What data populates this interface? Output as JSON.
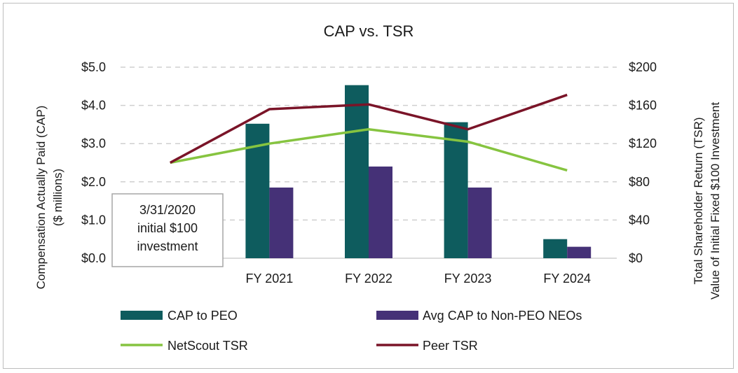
{
  "chart_data": {
    "type": "bar+line",
    "title": "CAP vs. TSR",
    "categories": [
      "",
      "FY 2021",
      "FY 2022",
      "FY 2023",
      "FY 2024"
    ],
    "y_left": {
      "label_line1": "Compensation Actually Paid (CAP)",
      "label_line2": "($ millions)",
      "ylim": [
        0,
        5
      ],
      "ticks": [
        0,
        1,
        2,
        3,
        4,
        5
      ],
      "tick_labels": [
        "$0.0",
        "$1.0",
        "$2.0",
        "$3.0",
        "$4.0",
        "$5.0"
      ]
    },
    "y_right": {
      "label_line1": "Total Shareholder Return (TSR)",
      "label_line2": "Value of Initial Fixed $100 Investment",
      "ylim": [
        0,
        200
      ],
      "ticks": [
        0,
        40,
        80,
        120,
        160,
        200
      ],
      "tick_labels": [
        "$0",
        "$40",
        "$80",
        "$120",
        "$160",
        "$200"
      ]
    },
    "bar_series": [
      {
        "name": "CAP to PEO",
        "color": "#0e5c5e",
        "values": [
          null,
          3.52,
          4.53,
          3.56,
          0.5
        ]
      },
      {
        "name": "Avg CAP to Non-PEO NEOs",
        "color": "#453177",
        "values": [
          null,
          1.85,
          2.4,
          1.85,
          0.3
        ]
      }
    ],
    "line_series": [
      {
        "name": "NetScout TSR",
        "color": "#86c440",
        "values": [
          100,
          120,
          135,
          122,
          92
        ]
      },
      {
        "name": "Peer TSR",
        "color": "#7a1428",
        "values": [
          100,
          156,
          161,
          135,
          171
        ]
      }
    ],
    "annotation": {
      "lines": [
        "3/31/2020",
        "initial $100",
        "investment"
      ]
    },
    "gridlines": true,
    "legend_position": "bottom"
  }
}
